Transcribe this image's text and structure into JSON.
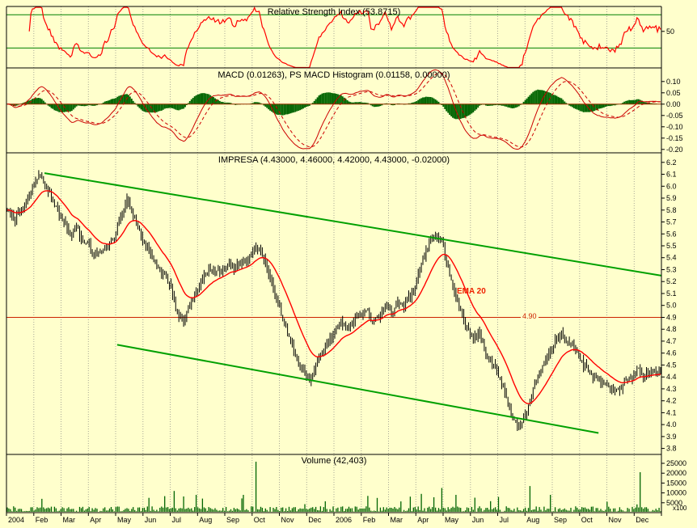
{
  "window": {
    "background": "#ffffcc"
  },
  "chart_data": {
    "type": "candlestick",
    "panels": [
      "rsi",
      "macd",
      "price",
      "volume"
    ],
    "x_axis": {
      "labels": [
        "2004",
        "Feb",
        "Mar",
        "Apr",
        "May",
        "Jun",
        "Jul",
        "Aug",
        "Sep",
        "Oct",
        "Nov",
        "Dec",
        "2006",
        "Feb",
        "Mar",
        "Apr",
        "May",
        "Jun",
        "Jul",
        "Aug",
        "Sep",
        "Oct",
        "Nov",
        "Dec"
      ]
    },
    "rsi": {
      "title": "Relative Strength Index (53.8715)",
      "value": 53.8715,
      "levels": [
        70,
        30
      ],
      "yticks": [
        "50"
      ],
      "line_color": "#ff0000",
      "level_color": "#008000"
    },
    "macd": {
      "title": "MACD (0.01263), PS MACD Histogram (0.01158, 0.00000)",
      "macd_value": 0.01263,
      "histogram_value": 0.01158,
      "signal_value": 0.0,
      "yticks": [
        "0.10",
        "0.05",
        "0.00",
        "-0.05",
        "-0.10",
        "-0.15",
        "-0.20"
      ],
      "line_color": "#cc0000",
      "histogram_color": "#006400",
      "zero_line_color": "#993300"
    },
    "price": {
      "title": "IMPRESA (4.43000, 4.46000, 4.42000, 4.43000, -0.02000)",
      "symbol": "IMPRESA",
      "open": 4.43,
      "high": 4.46,
      "low": 4.42,
      "close": 4.43,
      "change": -0.02,
      "yticks": [
        "6.2",
        "6.1",
        "6.0",
        "5.9",
        "5.8",
        "5.7",
        "5.6",
        "5.5",
        "5.4",
        "5.3",
        "5.2",
        "5.1",
        "5.0",
        "4.9",
        "4.8",
        "4.7",
        "4.6",
        "4.5",
        "4.4",
        "4.3",
        "4.2",
        "4.1",
        "4.0",
        "3.9",
        "3.8"
      ],
      "weekly_closes": [
        5.8,
        5.72,
        5.78,
        5.85,
        6.0,
        6.1,
        6.02,
        5.9,
        5.78,
        5.68,
        5.6,
        5.66,
        5.54,
        5.5,
        5.42,
        5.46,
        5.5,
        5.58,
        5.75,
        5.88,
        5.76,
        5.62,
        5.52,
        5.42,
        5.3,
        5.26,
        5.15,
        4.92,
        4.87,
        5.0,
        5.12,
        5.24,
        5.3,
        5.28,
        5.3,
        5.34,
        5.3,
        5.36,
        5.38,
        5.46,
        5.5,
        5.34,
        5.18,
        5.0,
        4.85,
        4.7,
        4.56,
        4.44,
        4.38,
        4.5,
        4.62,
        4.7,
        4.78,
        4.85,
        4.8,
        4.88,
        4.92,
        4.96,
        4.86,
        4.92,
        5.0,
        4.94,
        5.04,
        5.0,
        5.08,
        5.2,
        5.4,
        5.52,
        5.6,
        5.54,
        5.32,
        5.1,
        4.95,
        4.82,
        4.72,
        4.76,
        4.6,
        4.52,
        4.42,
        4.28,
        4.08,
        3.98,
        4.05,
        4.2,
        4.36,
        4.5,
        4.6,
        4.7,
        4.76,
        4.7,
        4.64,
        4.54,
        4.46,
        4.4,
        4.38,
        4.34,
        4.3,
        4.28,
        4.36,
        4.4,
        4.46,
        4.42,
        4.44,
        4.43
      ],
      "ema_label": "EMA 20",
      "ema_period": 20,
      "ema_color": "#ff0000",
      "bar_color": "#000000",
      "hline": {
        "value": 4.9,
        "label": "4.90",
        "color": "#cc2200"
      },
      "trendline_color": "#00a000",
      "trendlines": [
        {
          "x1": 0.058,
          "y1": 6.11,
          "x2": 1.0,
          "y2": 5.25
        },
        {
          "x1": 0.169,
          "y1": 4.67,
          "x2": 0.904,
          "y2": 3.93
        }
      ]
    },
    "volume": {
      "title": "Volume (42,403)",
      "value": "42,403",
      "yticks": [
        "25000",
        "20000",
        "15000",
        "10000",
        "5000"
      ],
      "unit_label": "x100",
      "bar_color": "#006400",
      "spikes": {
        "22": 7000,
        "90": 7500,
        "106": 11000,
        "112": 8200,
        "150": 9000,
        "158": 25800,
        "229": 8500,
        "263": 9500,
        "276": 12500,
        "285": 9000,
        "312": 8000,
        "332": 13500,
        "345": 9000,
        "402": 20500
      }
    }
  }
}
